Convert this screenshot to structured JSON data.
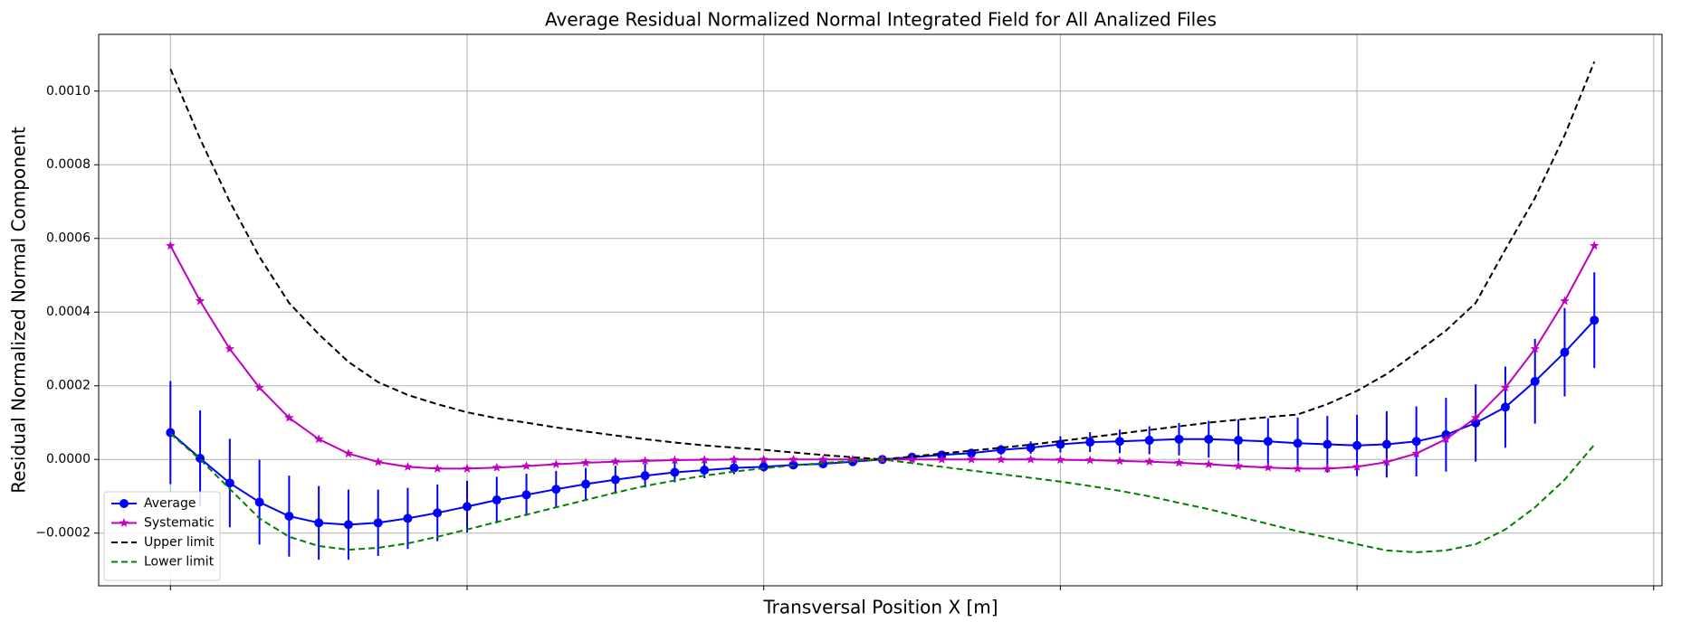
{
  "chart_data": {
    "type": "line",
    "title": "Average Residual Normalized Normal Integrated Field for All Analized Files",
    "xlabel": "Transversal Position X [m]",
    "ylabel": "Residual Normalized Normal Component",
    "categories": [
      null,
      null,
      null,
      null,
      null,
      null,
      null,
      null,
      null,
      null,
      null,
      null,
      null,
      null,
      null,
      null,
      null,
      null,
      null,
      null,
      null,
      null,
      null,
      null,
      null,
      null,
      null,
      null,
      null,
      null,
      null,
      null,
      null,
      null,
      null,
      null,
      null,
      null,
      null,
      null,
      null,
      null,
      null,
      null,
      null,
      null,
      null,
      null,
      null
    ],
    "ylim": [
      -0.000343,
      0.001154
    ],
    "yticks": [
      {
        "value": -0.0002,
        "label": "−0.0002"
      },
      {
        "value": 0,
        "label": "0.0000"
      },
      {
        "value": 0.0002,
        "label": "0.0002"
      },
      {
        "value": 0.0004,
        "label": "0.0004"
      },
      {
        "value": 0.0006,
        "label": "0.0006"
      },
      {
        "value": 0.0008,
        "label": "0.0008"
      },
      {
        "value": 0.001,
        "label": "0.0010"
      }
    ],
    "grid": true,
    "legend": "lower left",
    "series": [
      {
        "name": "Average",
        "color": "#0000ff",
        "marker": "circle",
        "linestyle": "solid",
        "values": [
          7.3e-05,
          3e-06,
          -6.4e-05,
          -0.000116,
          -0.000154,
          -0.000172,
          -0.000177,
          -0.000172,
          -0.00016,
          -0.000145,
          -0.000128,
          -0.00011,
          -9.6e-05,
          -8.1e-05,
          -6.7e-05,
          -5.5e-05,
          -4.4e-05,
          -3.5e-05,
          -2.9e-05,
          -2.3e-05,
          -2e-05,
          -1.5e-05,
          -1.2e-05,
          -6e-06,
          0,
          6e-06,
          1.2e-05,
          1.7e-05,
          2.6e-05,
          3.2e-05,
          4.1e-05,
          4.7e-05,
          4.9e-05,
          5.2e-05,
          5.5e-05,
          5.5e-05,
          5.2e-05,
          4.9e-05,
          4.4e-05,
          4.1e-05,
          3.8e-05,
          4.1e-05,
          4.9e-05,
          6.7e-05,
          9.9e-05,
          0.000142,
          0.000212,
          0.000291,
          0.000378
        ],
        "errors": [
          0.00014,
          0.00013,
          0.00012,
          0.000115,
          0.00011,
          0.0001,
          9.5e-05,
          9e-05,
          8.3e-05,
          7.7e-05,
          7e-05,
          6.3e-05,
          5.7e-05,
          5e-05,
          4.4e-05,
          3.8e-05,
          3.2e-05,
          2.7e-05,
          2.2e-05,
          1.7e-05,
          1.3e-05,
          1e-05,
          7e-06,
          4e-06,
          2e-06,
          4e-06,
          7e-06,
          1e-05,
          1.3e-05,
          1.7e-05,
          2.2e-05,
          2.7e-05,
          3.2e-05,
          3.8e-05,
          4.4e-05,
          5e-05,
          5.7e-05,
          6.3e-05,
          7e-05,
          7.7e-05,
          8.3e-05,
          9e-05,
          9.5e-05,
          0.0001,
          0.000105,
          0.00011,
          0.000115,
          0.00012,
          0.00013
        ]
      },
      {
        "name": "Systematic",
        "color": "#bf00bf",
        "marker": "star",
        "linestyle": "solid",
        "values": [
          0.00058,
          0.00043,
          0.0003,
          0.000195,
          0.000113,
          5.5e-05,
          1.6e-05,
          -7e-06,
          -2e-05,
          -2.5e-05,
          -2.5e-05,
          -2.2e-05,
          -1.8e-05,
          -1.3e-05,
          -9e-06,
          -6e-06,
          -4e-06,
          -2e-06,
          -1e-06,
          0,
          0,
          0,
          0,
          0,
          0,
          0,
          0,
          0,
          0,
          0,
          -1e-06,
          -2e-06,
          -4e-06,
          -6e-06,
          -9e-06,
          -1.3e-05,
          -1.8e-05,
          -2.2e-05,
          -2.5e-05,
          -2.5e-05,
          -2e-05,
          -7e-06,
          1.6e-05,
          5.5e-05,
          0.000113,
          0.000195,
          0.0003,
          0.00043,
          0.00058
        ]
      },
      {
        "name": "Upper limit",
        "color": "#000000",
        "marker": "none",
        "linestyle": "dashed",
        "values": [
          0.00106,
          0.00087,
          0.0007,
          0.00055,
          0.000425,
          0.00034,
          0.000265,
          0.00021,
          0.000175,
          0.00015,
          0.000128,
          0.000112,
          0.0001,
          8.7e-05,
          7.6e-05,
          6.5e-05,
          5.5e-05,
          4.6e-05,
          3.8e-05,
          3.2e-05,
          2.6e-05,
          1.9e-05,
          1.2e-05,
          6e-06,
          0,
          8e-06,
          1.6e-05,
          2.4e-05,
          3.2e-05,
          4e-05,
          5e-05,
          6e-05,
          7e-05,
          8e-05,
          9e-05,
          0.0001,
          0.000108,
          0.000115,
          0.000122,
          0.00015,
          0.000186,
          0.000232,
          0.00029,
          0.00035,
          0.000425,
          0.00057,
          0.00071,
          0.00088,
          0.00108
        ]
      },
      {
        "name": "Lower limit",
        "color": "#008000",
        "marker": "none",
        "linestyle": "dashed",
        "values": [
          7e-05,
          0,
          -8e-05,
          -0.00016,
          -0.00021,
          -0.000235,
          -0.000245,
          -0.00024,
          -0.000228,
          -0.00021,
          -0.00019,
          -0.00017,
          -0.00015,
          -0.00013,
          -0.00011,
          -9e-05,
          -7.2e-05,
          -5.7e-05,
          -4.4e-05,
          -3.3e-05,
          -2.4e-05,
          -1.6e-05,
          -1e-05,
          -4e-06,
          0,
          -1e-05,
          -2e-05,
          -3e-05,
          -4e-05,
          -5e-05,
          -6e-05,
          -7.2e-05,
          -8.5e-05,
          -0.0001,
          -0.000118,
          -0.000135,
          -0.000155,
          -0.000175,
          -0.000195,
          -0.000212,
          -0.00023,
          -0.000247,
          -0.000252,
          -0.000247,
          -0.00023,
          -0.00019,
          -0.00013,
          -5.5e-05,
          4e-05
        ]
      }
    ]
  }
}
